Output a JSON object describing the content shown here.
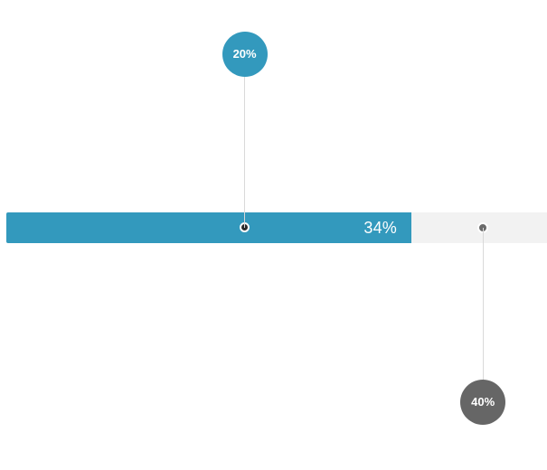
{
  "progress": {
    "value_percent": 34,
    "label": "34%",
    "fill_color": "#3399bd",
    "track_color": "#f2f2f2"
  },
  "markers": [
    {
      "label": "20%",
      "position_percent": 20,
      "placement": "above",
      "bubble_color": "#3399bd"
    },
    {
      "label": "40%",
      "position_percent": 40,
      "placement": "below",
      "bubble_color": "#666666"
    }
  ]
}
